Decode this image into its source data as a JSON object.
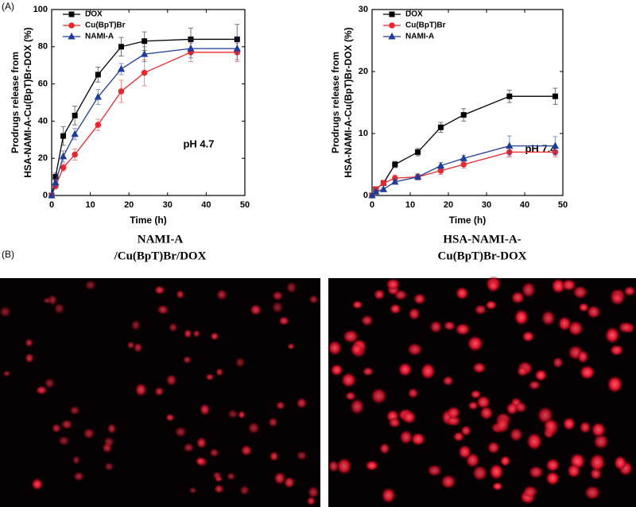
{
  "panel_labels": [
    "(A)",
    "(B)"
  ],
  "chart_data": [
    {
      "type": "line",
      "xlabel": "Time (h)",
      "ylabel": [
        "Prodrugs release from",
        "HSA-NAMI-A-Cu(BpT)Br-DOX  (%)"
      ],
      "annotation": "pH 4.7",
      "x": [
        0,
        1,
        3,
        6,
        12,
        18,
        24,
        36,
        48
      ],
      "xlim": [
        0,
        50
      ],
      "xticks": [
        0,
        10,
        20,
        30,
        40,
        50
      ],
      "ylim": [
        0,
        100
      ],
      "yticks": [
        0,
        20,
        40,
        60,
        80,
        100
      ],
      "legend": "upper-left",
      "series": [
        {
          "name": "DOX",
          "color": "#000000",
          "marker": "square",
          "values": [
            0,
            10,
            32,
            43,
            65,
            80,
            83,
            84,
            84
          ],
          "errors": [
            0,
            2,
            5,
            5,
            4,
            5,
            5,
            6,
            8
          ]
        },
        {
          "name": "Cu(BpT)Br",
          "color": "#e8282f",
          "marker": "circle",
          "values": [
            0,
            5,
            15,
            22,
            38,
            56,
            66,
            77,
            77
          ],
          "errors": [
            0,
            1,
            2,
            3,
            3,
            6,
            7,
            5,
            5
          ]
        },
        {
          "name": "NAMI-A",
          "color": "#1f3c99",
          "marker": "triangle",
          "values": [
            0,
            7,
            21,
            33,
            53,
            68,
            76,
            79,
            79
          ],
          "errors": [
            0,
            2,
            3,
            3,
            4,
            3,
            4,
            5,
            6
          ]
        }
      ]
    },
    {
      "type": "line",
      "xlabel": "Time (h)",
      "ylabel": [
        "Prodrugs release from",
        "HSA-NAMI-A-Cu(BpT)Br-DOX  (%)"
      ],
      "annotation": "pH 7.4",
      "x": [
        0,
        1,
        3,
        6,
        12,
        18,
        24,
        36,
        48
      ],
      "xlim": [
        0,
        50
      ],
      "xticks": [
        0,
        10,
        20,
        30,
        40,
        50
      ],
      "ylim": [
        0,
        30
      ],
      "yticks": [
        0,
        10,
        20,
        30
      ],
      "legend": "upper-left",
      "series": [
        {
          "name": "DOX",
          "color": "#000000",
          "marker": "square",
          "values": [
            0,
            1,
            2,
            5,
            7,
            11,
            13,
            16,
            16
          ],
          "errors": [
            0,
            0.3,
            0.4,
            0.5,
            0.6,
            0.8,
            1,
            1,
            1.3
          ]
        },
        {
          "name": "Cu(BpT)Br",
          "color": "#e8282f",
          "marker": "circle",
          "values": [
            0,
            1,
            2,
            2.8,
            3,
            4,
            5,
            7,
            7
          ],
          "errors": [
            0,
            0.2,
            0.4,
            0.5,
            0.5,
            0.6,
            0.6,
            0.8,
            0.8
          ]
        },
        {
          "name": "NAMI-A",
          "color": "#1f3c99",
          "marker": "triangle",
          "values": [
            0,
            0.6,
            1,
            2.2,
            3,
            4.8,
            6,
            8,
            8
          ],
          "errors": [
            0,
            0.2,
            0.2,
            0.3,
            0.4,
            0.5,
            0.5,
            1.6,
            1.5
          ]
        }
      ]
    }
  ],
  "images": [
    {
      "title": [
        "NAMI-A",
        "/Cu(BpT)Br/DOX"
      ]
    },
    {
      "title": [
        "HSA-NAMI-A-",
        "Cu(BpT)Br-DOX"
      ]
    }
  ]
}
